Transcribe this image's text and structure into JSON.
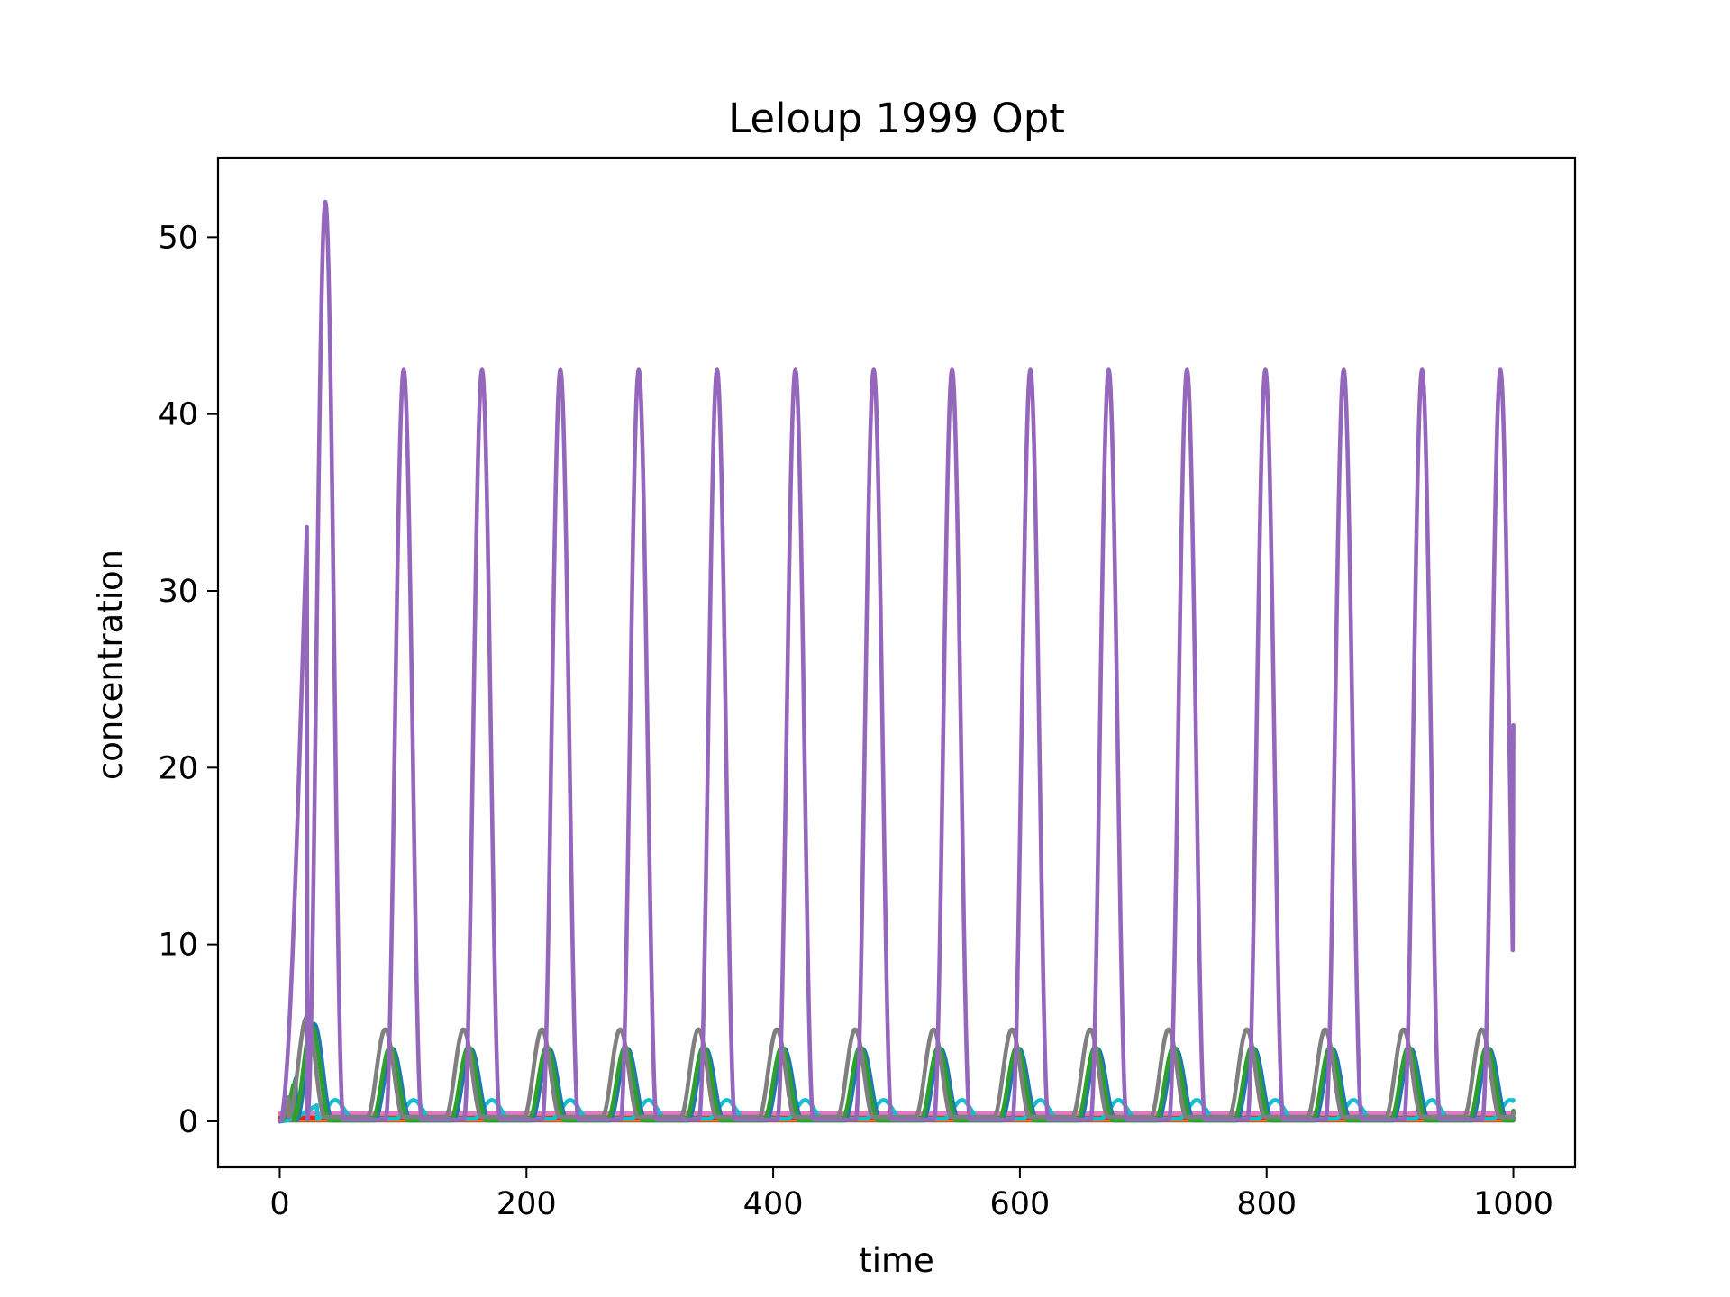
{
  "chart_data": {
    "type": "line",
    "title": "Leloup 1999 Opt",
    "xlabel": "time",
    "ylabel": "concentration",
    "xlim": [
      -50,
      1050
    ],
    "ylim": [
      -2.6,
      54.5
    ],
    "xticks": [
      0,
      200,
      400,
      600,
      800,
      1000
    ],
    "yticks": [
      0,
      10,
      20,
      30,
      40,
      50
    ],
    "grid": false,
    "legend": "none",
    "series": [
      {
        "color": "#9467bd",
        "period": 63.5,
        "first_peak": {
          "x": 37,
          "y": 52
        },
        "steady_peak": 42.5,
        "trough": 0.1,
        "end": {
          "x": 1000,
          "y": 22.4
        }
      },
      {
        "color": "#7f7f7f",
        "period": 63.5,
        "first_peak": {
          "x": 22,
          "y": 5.9
        },
        "steady_peak": 5.2,
        "trough": 0.25,
        "end": {
          "x": 1000,
          "y": 0.5
        }
      },
      {
        "color": "#2ca02c",
        "period": 63.5,
        "first_peak": {
          "x": 26,
          "y": 5.4
        },
        "steady_peak": 4.2,
        "trough": 0.05,
        "end": {
          "x": 1000,
          "y": 0.6
        }
      },
      {
        "color": "#1f77b4",
        "period": 63.5,
        "first_peak": {
          "x": 28,
          "y": 5.5
        },
        "steady_peak": 4.1,
        "trough": 0.05,
        "end": {
          "x": 1000,
          "y": 0.5
        }
      },
      {
        "color": "#17becf",
        "period": 63.5,
        "first_peak": {
          "x": 45,
          "y": 1.2
        },
        "steady_peak": 1.2,
        "trough": 0.15,
        "end": {
          "x": 1000,
          "y": 1.2
        }
      },
      {
        "color": "#e377c2",
        "constant": 0.45
      },
      {
        "color": "#d62728",
        "constant": 0.2
      },
      {
        "color": "#ff7f0e",
        "constant": 0.1
      },
      {
        "color": "#bcbd22",
        "constant": 0.25
      },
      {
        "color": "#8c564b",
        "constant": 0.05
      }
    ]
  }
}
